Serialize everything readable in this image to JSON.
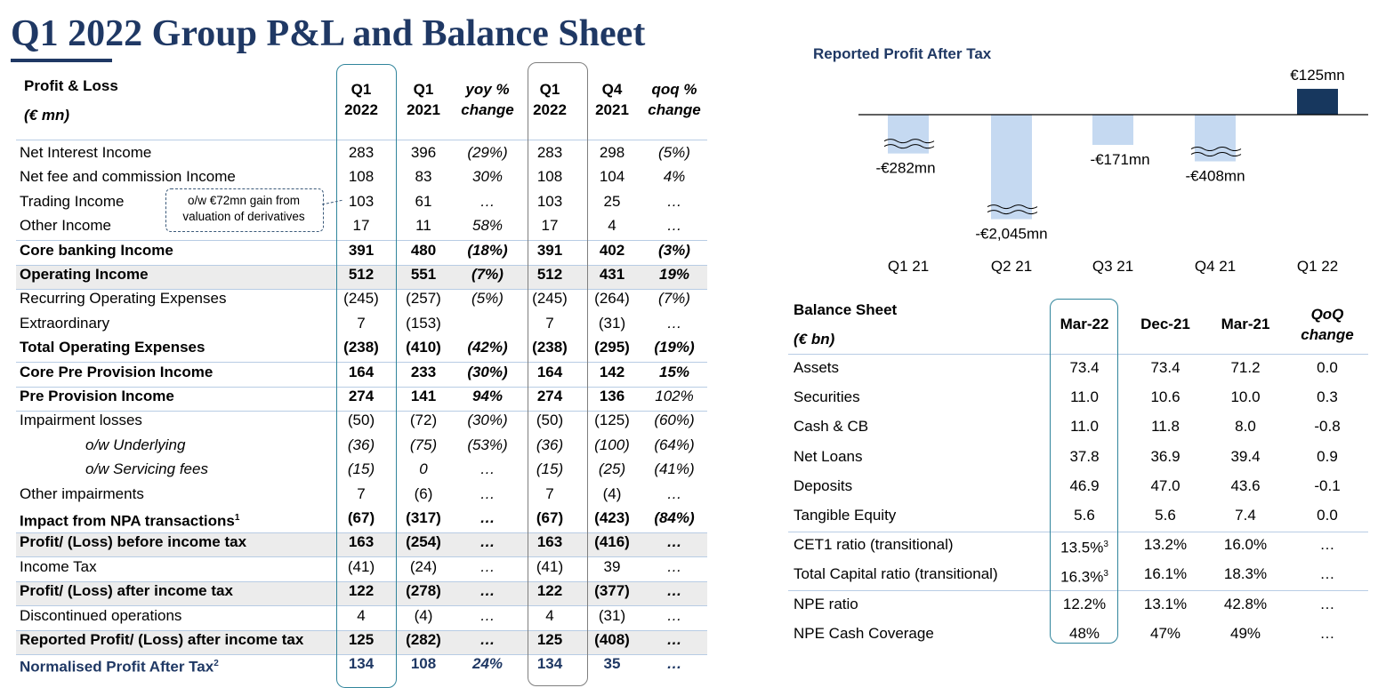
{
  "title": "Q1 2022 Group P&L and Balance Sheet",
  "pnl": {
    "header": {
      "title": "Profit & Loss",
      "unit": "(€ mn)",
      "columns": [
        [
          "Q1",
          "2022"
        ],
        [
          "Q1",
          "2021"
        ],
        [
          "yoy %",
          "change"
        ],
        [
          "Q1",
          "2022"
        ],
        [
          "Q4",
          "2021"
        ],
        [
          "qoq %",
          "change"
        ]
      ]
    },
    "callout": [
      "o/w €72mn gain from",
      "valuation of derivatives"
    ],
    "rows": [
      {
        "label": "Net Interest Income",
        "cells": [
          "283",
          "396",
          "(29%)",
          "283",
          "298",
          "(5%)"
        ]
      },
      {
        "label": "Net fee and commission Income",
        "cells": [
          "108",
          "83",
          "30%",
          "108",
          "104",
          "4%"
        ]
      },
      {
        "label": "Trading Income",
        "cells": [
          "103",
          "61",
          "…",
          "103",
          "25",
          "…"
        ]
      },
      {
        "label": "Other Income",
        "cells": [
          "17",
          "11",
          "58%",
          "17",
          "4",
          "…"
        ]
      },
      {
        "label": "Core banking Income",
        "cells": [
          "391",
          "480",
          "(18%)",
          "391",
          "402",
          "(3%)"
        ]
      },
      {
        "label": "Operating Income",
        "cells": [
          "512",
          "551",
          "(7%)",
          "512",
          "431",
          "19%"
        ]
      },
      {
        "label": "Recurring Operating Expenses",
        "cells": [
          "(245)",
          "(257)",
          "(5%)",
          "(245)",
          "(264)",
          "(7%)"
        ]
      },
      {
        "label": "Extraordinary",
        "cells": [
          "7",
          "(153)",
          null,
          "7",
          "(31)",
          "…"
        ]
      },
      {
        "label": "Total Operating Expenses",
        "cells": [
          "(238)",
          "(410)",
          "(42%)",
          "(238)",
          "(295)",
          "(19%)"
        ]
      },
      {
        "label": "Core Pre Provision Income",
        "cells": [
          "164",
          "233",
          "(30%)",
          "164",
          "142",
          "15%"
        ]
      },
      {
        "label": "Pre Provision Income",
        "cells": [
          "274",
          "141",
          "94%",
          "274",
          "136",
          "102%"
        ]
      },
      {
        "label": "Impairment losses",
        "cells": [
          "(50)",
          "(72)",
          "(30%)",
          "(50)",
          "(125)",
          "(60%)"
        ]
      },
      {
        "label": "o/w Underlying",
        "cells": [
          "(36)",
          "(75)",
          "(53%)",
          "(36)",
          "(100)",
          "(64%)"
        ]
      },
      {
        "label": "o/w Servicing fees",
        "cells": [
          "(15)",
          "0",
          "…",
          "(15)",
          "(25)",
          "(41%)"
        ]
      },
      {
        "label": "Other impairments",
        "cells": [
          "7",
          "(6)",
          "…",
          "7",
          "(4)",
          "…"
        ]
      },
      {
        "label": "Impact from NPA transactions",
        "note": "1",
        "cells": [
          "(67)",
          "(317)",
          "…",
          "(67)",
          "(423)",
          "(84%)"
        ]
      },
      {
        "label": "Profit/ (Loss) before income tax",
        "cells": [
          "163",
          "(254)",
          "…",
          "163",
          "(416)",
          "…"
        ]
      },
      {
        "label": "Income Tax",
        "cells": [
          "(41)",
          "(24)",
          "…",
          "(41)",
          "39",
          "…"
        ]
      },
      {
        "label": "Profit/ (Loss) after income tax",
        "cells": [
          "122",
          "(278)",
          "…",
          "122",
          "(377)",
          "…"
        ]
      },
      {
        "label": "Discontinued operations",
        "cells": [
          "4",
          "(4)",
          "…",
          "4",
          "(31)",
          "…"
        ]
      },
      {
        "label": "Reported Profit/ (Loss) after income tax",
        "cells": [
          "125",
          "(282)",
          "…",
          "125",
          "(408)",
          "…"
        ]
      },
      {
        "label": "Normalised Profit After Tax",
        "note": "2",
        "cells": [
          "134",
          "108",
          "24%",
          "134",
          "35",
          "…"
        ]
      }
    ]
  },
  "chart_data": {
    "type": "bar",
    "title": "Reported Profit After Tax",
    "categories": [
      "Q1 21",
      "Q2 21",
      "Q3 21",
      "Q4 21",
      "Q1 22"
    ],
    "values": [
      -282,
      -2045,
      -171,
      -408,
      125
    ],
    "value_labels": [
      "-€282mn",
      "-€2,045mn",
      "-€171mn",
      "-€408mn",
      "€125mn"
    ],
    "colors": [
      "#c5d9f1",
      "#c5d9f1",
      "#c5d9f1",
      "#c5d9f1",
      "#17375e"
    ]
  },
  "balance": {
    "header": {
      "title": "Balance Sheet",
      "unit": "(€ bn)",
      "columns": [
        [
          "Mar-22"
        ],
        [
          "Dec-21"
        ],
        [
          "Mar-21"
        ],
        [
          "QoQ",
          "change"
        ]
      ]
    },
    "rows": [
      {
        "label": "Assets",
        "cells": [
          "73.4",
          "73.4",
          "71.2",
          "0.0"
        ]
      },
      {
        "label": "Securities",
        "cells": [
          "11.0",
          "10.6",
          "10.0",
          "0.3"
        ]
      },
      {
        "label": "Cash & CB",
        "cells": [
          "11.0",
          "11.8",
          "8.0",
          "-0.8"
        ]
      },
      {
        "label": "Net Loans",
        "cells": [
          "37.8",
          "36.9",
          "39.4",
          "0.9"
        ]
      },
      {
        "label": "Deposits",
        "cells": [
          "46.9",
          "47.0",
          "43.6",
          "-0.1"
        ]
      },
      {
        "label": "Tangible Equity",
        "cells": [
          "5.6",
          "5.6",
          "7.4",
          "0.0"
        ]
      },
      {
        "label": "CET1 ratio (transitional)",
        "cells": [
          "13.5%",
          "13.2%",
          "16.0%",
          "…"
        ],
        "note": "3"
      },
      {
        "label": "Total Capital ratio (transitional)",
        "cells": [
          "16.3%",
          "16.1%",
          "18.3%",
          "…"
        ],
        "note": "3"
      },
      {
        "label": "NPE ratio",
        "cells": [
          "12.2%",
          "13.1%",
          "42.8%",
          "…"
        ]
      },
      {
        "label": "NPE Cash Coverage",
        "cells": [
          "48%",
          "47%",
          "49%",
          "…"
        ]
      }
    ]
  }
}
